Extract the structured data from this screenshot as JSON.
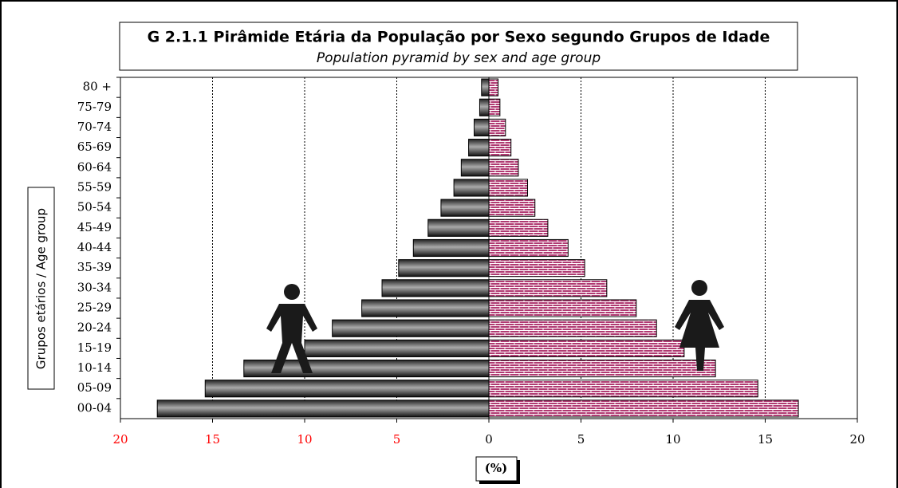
{
  "chart_data": {
    "type": "pyramid",
    "title": "G 2.1.1 Pirâmide Etária da População por Sexo segundo Grupos de Idade",
    "subtitle": "Population pyramid by sex and age group",
    "y_label": "Grupos etários / Age group",
    "x_label": "(%)",
    "categories": [
      "80 +",
      "75-79",
      "70-74",
      "65-69",
      "60-64",
      "55-59",
      "50-54",
      "45-49",
      "40-44",
      "35-39",
      "30-34",
      "25-29",
      "20-24",
      "15-19",
      "10-14",
      "05-09",
      "00-04"
    ],
    "series": [
      {
        "color": "#555555",
        "values": [
          -0.4,
          -0.5,
          -0.8,
          -1.1,
          -1.5,
          -1.9,
          -2.6,
          -3.3,
          -4.1,
          -4.9,
          -5.8,
          -6.9,
          -8.5,
          -10.0,
          -13.3,
          -15.4,
          -18.0
        ]
      },
      {
        "color": "#b03a72",
        "values": [
          0.5,
          0.6,
          0.9,
          1.2,
          1.6,
          2.1,
          2.5,
          3.2,
          4.3,
          5.2,
          6.4,
          8.0,
          9.1,
          10.6,
          12.3,
          14.6,
          16.8
        ]
      }
    ],
    "xlim": [
      -20,
      20
    ],
    "xticks": [
      {
        "value": -20,
        "label": "20"
      },
      {
        "value": -15,
        "label": "15"
      },
      {
        "value": -10,
        "label": "10"
      },
      {
        "value": -5,
        "label": "5"
      },
      0,
      5,
      10,
      15,
      20
    ],
    "negative_tick_color": "#ff0000",
    "grid": true
  }
}
